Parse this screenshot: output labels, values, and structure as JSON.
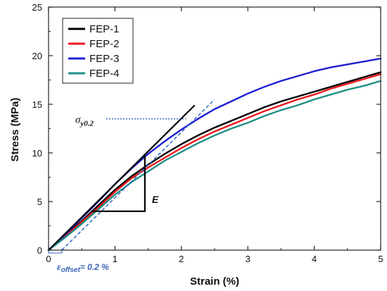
{
  "chart_data": {
    "type": "line",
    "xlabel": "Strain (%)",
    "ylabel": "Stress (MPa)",
    "xlim": [
      0,
      5
    ],
    "ylim": [
      0,
      25
    ],
    "xticks": [
      0,
      1,
      2,
      3,
      4,
      5
    ],
    "yticks": [
      0,
      5,
      10,
      15,
      20,
      25
    ],
    "legend_position": "top-left",
    "series": [
      {
        "name": "FEP-1",
        "color": "#000000",
        "x": [
          0,
          0.25,
          0.5,
          0.75,
          1.0,
          1.25,
          1.5,
          1.75,
          2.0,
          2.25,
          2.5,
          2.75,
          3.0,
          3.25,
          3.5,
          3.75,
          4.0,
          4.25,
          4.5,
          4.75,
          5.0
        ],
        "y": [
          0,
          1.5,
          3.0,
          4.6,
          6.2,
          7.6,
          8.8,
          9.9,
          10.9,
          11.8,
          12.6,
          13.3,
          14.0,
          14.7,
          15.3,
          15.8,
          16.3,
          16.8,
          17.3,
          17.8,
          18.3
        ]
      },
      {
        "name": "FEP-2",
        "color": "#e8191c",
        "x": [
          0,
          0.25,
          0.5,
          0.75,
          1.0,
          1.25,
          1.5,
          1.75,
          2.0,
          2.25,
          2.5,
          2.75,
          3.0,
          3.25,
          3.5,
          3.75,
          4.0,
          4.25,
          4.5,
          4.75,
          5.0
        ],
        "y": [
          0,
          1.4,
          2.9,
          4.4,
          6.0,
          7.4,
          8.5,
          9.5,
          10.5,
          11.4,
          12.2,
          12.9,
          13.6,
          14.3,
          14.9,
          15.5,
          16.0,
          16.6,
          17.1,
          17.6,
          18.1
        ]
      },
      {
        "name": "FEP-3",
        "color": "#1d1fd1",
        "x": [
          0,
          0.25,
          0.5,
          0.75,
          1.0,
          1.25,
          1.5,
          1.75,
          2.0,
          2.25,
          2.5,
          2.75,
          3.0,
          3.25,
          3.5,
          3.75,
          4.0,
          4.25,
          4.5,
          4.75,
          5.0
        ],
        "y": [
          0,
          1.6,
          3.3,
          5.0,
          6.8,
          8.4,
          9.9,
          11.2,
          12.4,
          13.5,
          14.5,
          15.3,
          16.1,
          16.8,
          17.4,
          17.9,
          18.4,
          18.8,
          19.1,
          19.4,
          19.7
        ]
      },
      {
        "name": "FEP-4",
        "color": "#1f8f86",
        "x": [
          0,
          0.25,
          0.5,
          0.75,
          1.0,
          1.25,
          1.5,
          1.75,
          2.0,
          2.25,
          2.5,
          2.75,
          3.0,
          3.25,
          3.5,
          3.75,
          4.0,
          4.25,
          4.5,
          4.75,
          5.0
        ],
        "y": [
          0,
          1.3,
          2.7,
          4.2,
          5.7,
          7.0,
          8.1,
          9.2,
          10.1,
          11.0,
          11.8,
          12.5,
          13.1,
          13.8,
          14.4,
          14.9,
          15.5,
          16.0,
          16.5,
          16.9,
          17.4
        ]
      }
    ],
    "annotations": {
      "modulus_fit_line": {
        "x": [
          0,
          2.2
        ],
        "y": [
          0,
          14.9
        ],
        "color": "#000000"
      },
      "offset_line": {
        "x": [
          0.2,
          2.5
        ],
        "y": [
          0,
          15.5
        ],
        "color": "#2f66c4"
      },
      "yield_point": {
        "x": 2.07,
        "y": 13.5
      },
      "yield_label": "σy0.2",
      "modulus_triangle": {
        "x": [
          0.65,
          1.45
        ],
        "y": [
          4.0,
          9.7
        ]
      },
      "modulus_label": "E",
      "offset_label": "εoffset= 0.2 %"
    }
  }
}
